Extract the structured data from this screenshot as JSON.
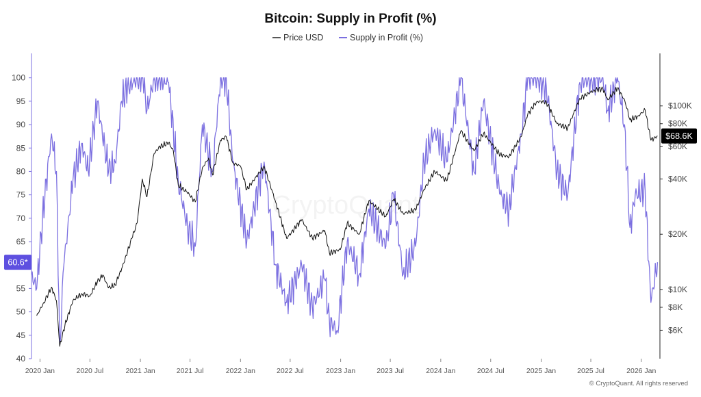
{
  "chart_data": {
    "type": "line",
    "title": "Bitcoin: Supply in Profit (%)",
    "legend_position": "top-center",
    "grid": false,
    "colors": {
      "price": "#111111",
      "supply": "#7b6fe0",
      "supply_badge": "#5e50e0",
      "price_badge": "#000000"
    },
    "x_axis": {
      "range": [
        "2019-12-01",
        "2026-03-10"
      ],
      "ticks": [
        {
          "date": "2020-01-01",
          "label": "2020 Jan"
        },
        {
          "date": "2020-07-01",
          "label": "2020 Jul"
        },
        {
          "date": "2021-01-01",
          "label": "2021 Jan"
        },
        {
          "date": "2021-07-01",
          "label": "2021 Jul"
        },
        {
          "date": "2022-01-01",
          "label": "2022 Jan"
        },
        {
          "date": "2022-07-01",
          "label": "2022 Jul"
        },
        {
          "date": "2023-01-01",
          "label": "2023 Jan"
        },
        {
          "date": "2023-07-01",
          "label": "2023 Jul"
        },
        {
          "date": "2024-01-01",
          "label": "2024 Jan"
        },
        {
          "date": "2024-07-01",
          "label": "2024 Jul"
        },
        {
          "date": "2025-01-01",
          "label": "2025 Jan"
        },
        {
          "date": "2025-07-01",
          "label": "2025 Jul"
        },
        {
          "date": "2026-01-01",
          "label": "2026 Jan"
        }
      ]
    },
    "y_left": {
      "range": [
        40,
        102
      ],
      "ticks": [
        40,
        45,
        50,
        55,
        60,
        65,
        70,
        75,
        80,
        85,
        90,
        95,
        100
      ]
    },
    "y_right": {
      "scale": "log",
      "range": [
        4200,
        160000
      ],
      "ticks": [
        {
          "value": 6000,
          "label": "$6K"
        },
        {
          "value": 8000,
          "label": "$8K"
        },
        {
          "value": 10000,
          "label": "$10K"
        },
        {
          "value": 20000,
          "label": "$20K"
        },
        {
          "value": 40000,
          "label": "$40K"
        },
        {
          "value": 60000,
          "label": "$60K"
        },
        {
          "value": 80000,
          "label": "$80K"
        },
        {
          "value": 100000,
          "label": "$100K"
        }
      ]
    },
    "series": [
      {
        "name": "Price USD",
        "axis": "right",
        "points": [
          [
            "2019-12-20",
            7200
          ],
          [
            "2020-01-15",
            8500
          ],
          [
            "2020-02-12",
            10300
          ],
          [
            "2020-03-01",
            8700
          ],
          [
            "2020-03-13",
            4900
          ],
          [
            "2020-04-01",
            6400
          ],
          [
            "2020-04-30",
            8700
          ],
          [
            "2020-06-01",
            9500
          ],
          [
            "2020-07-01",
            9200
          ],
          [
            "2020-07-28",
            11000
          ],
          [
            "2020-08-17",
            12000
          ],
          [
            "2020-09-07",
            10200
          ],
          [
            "2020-10-01",
            10600
          ],
          [
            "2020-10-25",
            13000
          ],
          [
            "2020-11-15",
            16000
          ],
          [
            "2020-12-01",
            19000
          ],
          [
            "2020-12-20",
            23000
          ],
          [
            "2021-01-08",
            40000
          ],
          [
            "2021-01-25",
            32000
          ],
          [
            "2021-02-20",
            55000
          ],
          [
            "2021-03-13",
            60000
          ],
          [
            "2021-04-14",
            63000
          ],
          [
            "2021-05-01",
            57000
          ],
          [
            "2021-05-19",
            37000
          ],
          [
            "2021-06-20",
            34000
          ],
          [
            "2021-07-20",
            30000
          ],
          [
            "2021-08-15",
            46000
          ],
          [
            "2021-09-07",
            52000
          ],
          [
            "2021-09-21",
            42000
          ],
          [
            "2021-10-20",
            65000
          ],
          [
            "2021-11-10",
            68000
          ],
          [
            "2021-12-04",
            49000
          ],
          [
            "2022-01-01",
            47000
          ],
          [
            "2022-01-24",
            35000
          ],
          [
            "2022-03-28",
            47000
          ],
          [
            "2022-05-09",
            30000
          ],
          [
            "2022-06-18",
            19000
          ],
          [
            "2022-08-12",
            24000
          ],
          [
            "2022-09-20",
            19000
          ],
          [
            "2022-11-04",
            21000
          ],
          [
            "2022-11-21",
            15800
          ],
          [
            "2022-12-31",
            16500
          ],
          [
            "2023-01-25",
            23000
          ],
          [
            "2023-03-10",
            20000
          ],
          [
            "2023-04-14",
            30500
          ],
          [
            "2023-06-15",
            25000
          ],
          [
            "2023-07-13",
            31000
          ],
          [
            "2023-08-17",
            26000
          ],
          [
            "2023-10-01",
            27000
          ],
          [
            "2023-11-01",
            35000
          ],
          [
            "2023-12-10",
            44000
          ],
          [
            "2024-01-23",
            39000
          ],
          [
            "2024-03-14",
            73000
          ],
          [
            "2024-05-01",
            57000
          ],
          [
            "2024-06-05",
            71000
          ],
          [
            "2024-08-05",
            54000
          ],
          [
            "2024-09-06",
            53000
          ],
          [
            "2024-10-20",
            68000
          ],
          [
            "2024-11-13",
            90000
          ],
          [
            "2024-12-17",
            106000
          ],
          [
            "2025-01-20",
            105000
          ],
          [
            "2025-02-28",
            80000
          ],
          [
            "2025-04-08",
            76000
          ],
          [
            "2025-05-22",
            110000
          ],
          [
            "2025-07-14",
            122000
          ],
          [
            "2025-08-14",
            124000
          ],
          [
            "2025-09-01",
            108000
          ],
          [
            "2025-10-06",
            125000
          ],
          [
            "2025-11-01",
            108000
          ],
          [
            "2025-11-21",
            84000
          ],
          [
            "2025-12-20",
            88000
          ],
          [
            "2026-01-15",
            95000
          ],
          [
            "2026-02-05",
            65000
          ],
          [
            "2026-03-01",
            68600
          ]
        ]
      },
      {
        "name": "Supply in Profit (%)",
        "axis": "left",
        "points": [
          [
            "2019-12-01",
            58
          ],
          [
            "2019-12-20",
            55
          ],
          [
            "2020-01-10",
            70
          ],
          [
            "2020-02-12",
            88
          ],
          [
            "2020-03-01",
            80
          ],
          [
            "2020-03-13",
            43
          ],
          [
            "2020-03-28",
            60
          ],
          [
            "2020-04-30",
            78
          ],
          [
            "2020-06-01",
            86
          ],
          [
            "2020-06-25",
            80
          ],
          [
            "2020-07-28",
            95
          ],
          [
            "2020-09-07",
            80
          ],
          [
            "2020-10-01",
            82
          ],
          [
            "2020-10-25",
            95
          ],
          [
            "2020-11-15",
            98
          ],
          [
            "2020-12-20",
            100
          ],
          [
            "2021-01-10",
            100
          ],
          [
            "2021-01-25",
            93
          ],
          [
            "2021-02-20",
            100
          ],
          [
            "2021-03-13",
            100
          ],
          [
            "2021-04-14",
            99
          ],
          [
            "2021-05-19",
            78
          ],
          [
            "2021-06-22",
            68
          ],
          [
            "2021-07-20",
            64
          ],
          [
            "2021-08-15",
            90
          ],
          [
            "2021-09-21",
            80
          ],
          [
            "2021-10-20",
            100
          ],
          [
            "2021-11-10",
            100
          ],
          [
            "2021-12-04",
            82
          ],
          [
            "2022-01-24",
            65
          ],
          [
            "2022-03-28",
            82
          ],
          [
            "2022-05-09",
            60
          ],
          [
            "2022-06-18",
            52
          ],
          [
            "2022-08-12",
            60
          ],
          [
            "2022-09-20",
            51
          ],
          [
            "2022-11-04",
            57
          ],
          [
            "2022-11-21",
            48
          ],
          [
            "2022-12-20",
            46
          ],
          [
            "2023-01-25",
            65
          ],
          [
            "2023-03-10",
            58
          ],
          [
            "2023-04-14",
            72
          ],
          [
            "2023-06-15",
            64
          ],
          [
            "2023-07-13",
            75
          ],
          [
            "2023-08-17",
            58
          ],
          [
            "2023-10-01",
            64
          ],
          [
            "2023-11-01",
            82
          ],
          [
            "2023-12-10",
            89
          ],
          [
            "2024-01-23",
            82
          ],
          [
            "2024-03-14",
            100
          ],
          [
            "2024-05-01",
            80
          ],
          [
            "2024-06-05",
            95
          ],
          [
            "2024-08-05",
            75
          ],
          [
            "2024-09-06",
            72
          ],
          [
            "2024-10-20",
            88
          ],
          [
            "2024-11-13",
            100
          ],
          [
            "2024-12-17",
            100
          ],
          [
            "2025-01-20",
            98
          ],
          [
            "2025-02-28",
            80
          ],
          [
            "2025-04-08",
            75
          ],
          [
            "2025-05-22",
            99
          ],
          [
            "2025-07-14",
            100
          ],
          [
            "2025-08-14",
            100
          ],
          [
            "2025-09-01",
            93
          ],
          [
            "2025-10-06",
            100
          ],
          [
            "2025-11-01",
            90
          ],
          [
            "2025-11-21",
            68
          ],
          [
            "2025-12-10",
            75
          ],
          [
            "2026-01-15",
            76
          ],
          [
            "2026-02-05",
            52
          ],
          [
            "2026-03-01",
            60.6
          ]
        ]
      }
    ],
    "current_badges": {
      "supply": "60.6*",
      "price": "$68.6K"
    },
    "watermark": "CryptoQuant",
    "copyright": "© CryptoQuant. All rights reserved"
  }
}
